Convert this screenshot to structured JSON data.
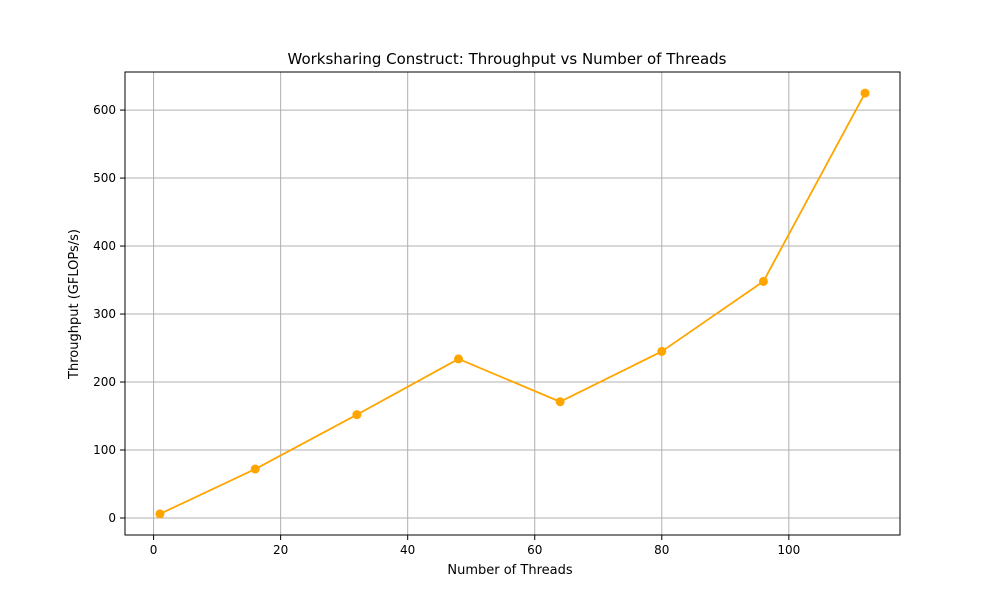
{
  "chart_data": {
    "type": "line",
    "title": "Worksharing Construct: Throughput vs Number of Threads",
    "xlabel": "Number of Threads",
    "ylabel": "Throughput (GFLOPs/s)",
    "x": [
      1,
      16,
      32,
      48,
      64,
      80,
      96,
      112
    ],
    "series": [
      {
        "values": [
          6,
          72,
          152,
          234,
          171,
          245,
          348,
          625
        ]
      }
    ],
    "xlim": [
      -4.5,
      117.5
    ],
    "ylim": [
      -25,
      656
    ],
    "xticks": [
      0,
      20,
      40,
      60,
      80,
      100
    ],
    "yticks": [
      0,
      100,
      200,
      300,
      400,
      500,
      600
    ],
    "grid": true,
    "line_color": "#ffa500",
    "marker": "circle"
  }
}
